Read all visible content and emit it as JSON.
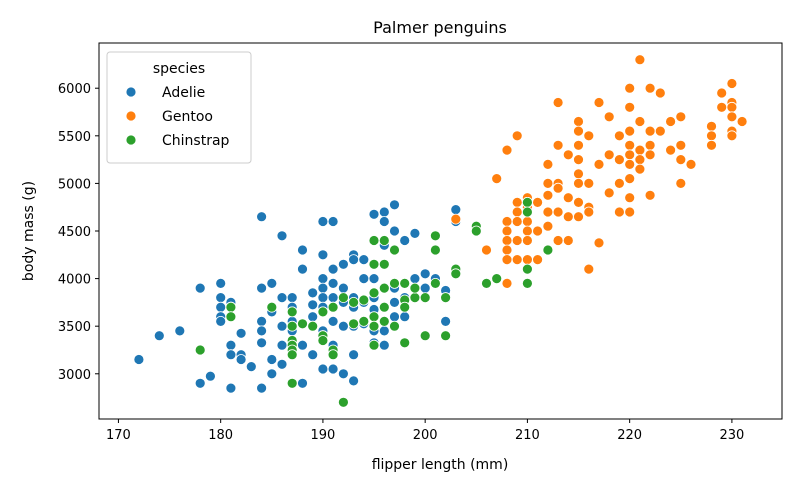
{
  "chart_data": {
    "type": "scatter",
    "title": "Palmer penguins",
    "xlabel": "flipper length (mm)",
    "ylabel": "body mass (g)",
    "xlim": [
      168.1,
      234.9
    ],
    "ylim": [
      2525,
      6475
    ],
    "xticks": [
      170,
      180,
      190,
      200,
      210,
      220,
      230
    ],
    "yticks": [
      3000,
      3500,
      4000,
      4500,
      5000,
      5500,
      6000
    ],
    "grid": false,
    "legend": {
      "title": "species",
      "placement": "top-left"
    },
    "series": [
      {
        "name": "Adelie",
        "color": "#1f77b4",
        "points": [
          [
            172,
            3150
          ],
          [
            174,
            3400
          ],
          [
            176,
            3450
          ],
          [
            178,
            3900
          ],
          [
            178,
            2900
          ],
          [
            179,
            2975
          ],
          [
            180,
            3950
          ],
          [
            180,
            3800
          ],
          [
            180,
            3700
          ],
          [
            180,
            3600
          ],
          [
            180,
            3550
          ],
          [
            181,
            3750
          ],
          [
            181,
            3700
          ],
          [
            181,
            3300
          ],
          [
            181,
            3200
          ],
          [
            181,
            2850
          ],
          [
            182,
            3425
          ],
          [
            182,
            3200
          ],
          [
            182,
            3150
          ],
          [
            183,
            3075
          ],
          [
            184,
            4650
          ],
          [
            184,
            3900
          ],
          [
            184,
            3550
          ],
          [
            184,
            3450
          ],
          [
            184,
            3325
          ],
          [
            184,
            2850
          ],
          [
            185,
            3950
          ],
          [
            185,
            3700
          ],
          [
            185,
            3650
          ],
          [
            185,
            3150
          ],
          [
            185,
            3000
          ],
          [
            186,
            4450
          ],
          [
            186,
            3800
          ],
          [
            186,
            3500
          ],
          [
            186,
            3300
          ],
          [
            186,
            3100
          ],
          [
            187,
            3800
          ],
          [
            187,
            3700
          ],
          [
            187,
            3650
          ],
          [
            187,
            3550
          ],
          [
            187,
            3450
          ],
          [
            187,
            3250
          ],
          [
            187,
            2900
          ],
          [
            188,
            4300
          ],
          [
            188,
            4100
          ],
          [
            188,
            3525
          ],
          [
            188,
            3300
          ],
          [
            188,
            2900
          ],
          [
            189,
            3850
          ],
          [
            189,
            3725
          ],
          [
            189,
            3600
          ],
          [
            189,
            3500
          ],
          [
            189,
            3200
          ],
          [
            190,
            4600
          ],
          [
            190,
            4250
          ],
          [
            190,
            4000
          ],
          [
            190,
            3900
          ],
          [
            190,
            3800
          ],
          [
            190,
            3700
          ],
          [
            190,
            3650
          ],
          [
            190,
            3450
          ],
          [
            190,
            3400
          ],
          [
            190,
            3050
          ],
          [
            191,
            4600
          ],
          [
            191,
            4100
          ],
          [
            191,
            3950
          ],
          [
            191,
            3800
          ],
          [
            191,
            3700
          ],
          [
            191,
            3550
          ],
          [
            191,
            3300
          ],
          [
            191,
            3050
          ],
          [
            192,
            4150
          ],
          [
            192,
            3900
          ],
          [
            192,
            3750
          ],
          [
            192,
            3500
          ],
          [
            192,
            3000
          ],
          [
            193,
            4250
          ],
          [
            193,
            4200
          ],
          [
            193,
            3800
          ],
          [
            193,
            3700
          ],
          [
            193,
            3500
          ],
          [
            193,
            3200
          ],
          [
            193,
            2925
          ],
          [
            194,
            4200
          ],
          [
            194,
            4000
          ],
          [
            194,
            3750
          ],
          [
            194,
            3525
          ],
          [
            195,
            4675
          ],
          [
            195,
            4000
          ],
          [
            195,
            3800
          ],
          [
            195,
            3675
          ],
          [
            195,
            3450
          ],
          [
            195,
            3325
          ],
          [
            196,
            4700
          ],
          [
            196,
            4600
          ],
          [
            196,
            4350
          ],
          [
            196,
            3900
          ],
          [
            196,
            3550
          ],
          [
            196,
            3450
          ],
          [
            196,
            3300
          ],
          [
            197,
            4775
          ],
          [
            197,
            4500
          ],
          [
            197,
            3900
          ],
          [
            197,
            3750
          ],
          [
            197,
            3600
          ],
          [
            198,
            4400
          ],
          [
            198,
            3800
          ],
          [
            198,
            3600
          ],
          [
            199,
            4475
          ],
          [
            199,
            4000
          ],
          [
            199,
            3900
          ],
          [
            200,
            4050
          ],
          [
            200,
            3900
          ],
          [
            201,
            4000
          ],
          [
            202,
            3875
          ],
          [
            202,
            3800
          ],
          [
            202,
            3550
          ],
          [
            203,
            4725
          ],
          [
            203,
            4600
          ]
        ]
      },
      {
        "name": "Gentoo",
        "color": "#ff7f0e",
        "points": [
          [
            203,
            4625
          ],
          [
            206,
            4300
          ],
          [
            207,
            5050
          ],
          [
            208,
            5350
          ],
          [
            208,
            4600
          ],
          [
            208,
            4500
          ],
          [
            208,
            4400
          ],
          [
            208,
            4300
          ],
          [
            208,
            4200
          ],
          [
            208,
            3950
          ],
          [
            209,
            5500
          ],
          [
            209,
            4800
          ],
          [
            209,
            4700
          ],
          [
            209,
            4600
          ],
          [
            209,
            4400
          ],
          [
            209,
            4200
          ],
          [
            210,
            4850
          ],
          [
            210,
            4800
          ],
          [
            210,
            4750
          ],
          [
            210,
            4600
          ],
          [
            210,
            4500
          ],
          [
            210,
            4400
          ],
          [
            210,
            4200
          ],
          [
            210,
            4100
          ],
          [
            210,
            3950
          ],
          [
            211,
            4800
          ],
          [
            211,
            4500
          ],
          [
            211,
            4200
          ],
          [
            212,
            5200
          ],
          [
            212,
            5000
          ],
          [
            212,
            4875
          ],
          [
            212,
            4700
          ],
          [
            212,
            4550
          ],
          [
            213,
            5850
          ],
          [
            213,
            5400
          ],
          [
            213,
            5000
          ],
          [
            213,
            4950
          ],
          [
            213,
            4700
          ],
          [
            213,
            4400
          ],
          [
            214,
            5300
          ],
          [
            214,
            4850
          ],
          [
            214,
            4650
          ],
          [
            214,
            4400
          ],
          [
            215,
            5650
          ],
          [
            215,
            5550
          ],
          [
            215,
            5400
          ],
          [
            215,
            5250
          ],
          [
            215,
            5100
          ],
          [
            215,
            5000
          ],
          [
            215,
            4800
          ],
          [
            215,
            4650
          ],
          [
            216,
            5500
          ],
          [
            216,
            5000
          ],
          [
            216,
            4750
          ],
          [
            216,
            4700
          ],
          [
            216,
            4100
          ],
          [
            217,
            5850
          ],
          [
            217,
            5200
          ],
          [
            217,
            4375
          ],
          [
            218,
            5700
          ],
          [
            218,
            5300
          ],
          [
            218,
            4900
          ],
          [
            219,
            5500
          ],
          [
            219,
            5250
          ],
          [
            219,
            5000
          ],
          [
            219,
            4700
          ],
          [
            220,
            6000
          ],
          [
            220,
            5800
          ],
          [
            220,
            5550
          ],
          [
            220,
            5400
          ],
          [
            220,
            5300
          ],
          [
            220,
            5200
          ],
          [
            220,
            5050
          ],
          [
            220,
            4850
          ],
          [
            220,
            4700
          ],
          [
            221,
            6300
          ],
          [
            221,
            5650
          ],
          [
            221,
            5350
          ],
          [
            221,
            5250
          ],
          [
            221,
            5150
          ],
          [
            222,
            6000
          ],
          [
            222,
            5550
          ],
          [
            222,
            5400
          ],
          [
            222,
            5300
          ],
          [
            222,
            4875
          ],
          [
            223,
            5950
          ],
          [
            223,
            5550
          ],
          [
            224,
            5650
          ],
          [
            224,
            5350
          ],
          [
            225,
            5700
          ],
          [
            225,
            5400
          ],
          [
            225,
            5250
          ],
          [
            225,
            5000
          ],
          [
            226,
            5200
          ],
          [
            228,
            5600
          ],
          [
            228,
            5500
          ],
          [
            228,
            5400
          ],
          [
            229,
            5950
          ],
          [
            229,
            5800
          ],
          [
            230,
            6050
          ],
          [
            230,
            5850
          ],
          [
            230,
            5800
          ],
          [
            230,
            5700
          ],
          [
            230,
            5550
          ],
          [
            230,
            5500
          ],
          [
            231,
            5650
          ]
        ]
      },
      {
        "name": "Chinstrap",
        "color": "#2ca02c",
        "points": [
          [
            178,
            3250
          ],
          [
            181,
            3700
          ],
          [
            181,
            3600
          ],
          [
            185,
            3700
          ],
          [
            187,
            3650
          ],
          [
            187,
            3500
          ],
          [
            187,
            3350
          ],
          [
            187,
            3300
          ],
          [
            187,
            3250
          ],
          [
            187,
            3200
          ],
          [
            187,
            2900
          ],
          [
            188,
            3525
          ],
          [
            189,
            3500
          ],
          [
            190,
            3400
          ],
          [
            190,
            3350
          ],
          [
            190,
            3650
          ],
          [
            191,
            3700
          ],
          [
            191,
            3250
          ],
          [
            191,
            3200
          ],
          [
            192,
            2700
          ],
          [
            192,
            3800
          ],
          [
            193,
            3750
          ],
          [
            193,
            3525
          ],
          [
            194,
            3775
          ],
          [
            194,
            3550
          ],
          [
            195,
            4400
          ],
          [
            195,
            4150
          ],
          [
            195,
            3850
          ],
          [
            195,
            3600
          ],
          [
            195,
            3500
          ],
          [
            195,
            3300
          ],
          [
            196,
            4400
          ],
          [
            196,
            4150
          ],
          [
            196,
            3900
          ],
          [
            196,
            3700
          ],
          [
            196,
            3550
          ],
          [
            197,
            4300
          ],
          [
            197,
            3950
          ],
          [
            197,
            3500
          ],
          [
            198,
            3950
          ],
          [
            198,
            3775
          ],
          [
            198,
            3700
          ],
          [
            198,
            3325
          ],
          [
            199,
            3800
          ],
          [
            199,
            3900
          ],
          [
            200,
            3800
          ],
          [
            200,
            3400
          ],
          [
            201,
            4450
          ],
          [
            201,
            4300
          ],
          [
            201,
            3950
          ],
          [
            202,
            3800
          ],
          [
            202,
            3400
          ],
          [
            203,
            4100
          ],
          [
            203,
            4050
          ],
          [
            205,
            4550
          ],
          [
            205,
            4500
          ],
          [
            206,
            3950
          ],
          [
            207,
            4000
          ],
          [
            210,
            4800
          ],
          [
            210,
            4700
          ],
          [
            210,
            4100
          ],
          [
            210,
            3950
          ],
          [
            212,
            4300
          ]
        ]
      }
    ]
  }
}
